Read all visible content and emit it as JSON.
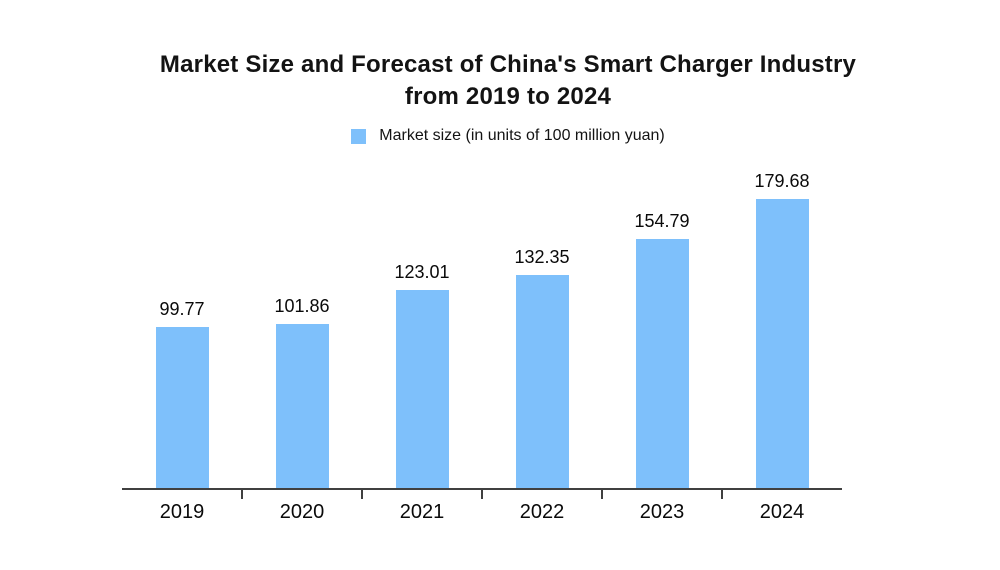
{
  "header": {
    "title_line1": "Market Size and Forecast of China's Smart Charger Industry",
    "title_line2": "from 2019 to 2024"
  },
  "legend": {
    "label": "Market size (in units of 100 million yuan)"
  },
  "colors": {
    "series": "#7EC0FB",
    "axis": "#404040",
    "text": "#131313"
  },
  "chart_data": {
    "type": "bar",
    "title": "Market Size and Forecast of China's Smart Charger Industry from 2019 to 2024",
    "categories": [
      "2019",
      "2020",
      "2021",
      "2022",
      "2023",
      "2024"
    ],
    "values": [
      99.77,
      101.86,
      123.01,
      132.35,
      154.79,
      179.68
    ],
    "data_labels": [
      "99.77",
      "101.86",
      "123.01",
      "132.35",
      "154.79",
      "179.68"
    ],
    "series_name": "Market size (in units of 100 million yuan)",
    "xlabel": "",
    "ylabel": "",
    "ylim": [
      0,
      200
    ],
    "grid": false,
    "y_axis_visible": false,
    "legend_position": "top-center",
    "value_label_decimals": 2
  }
}
